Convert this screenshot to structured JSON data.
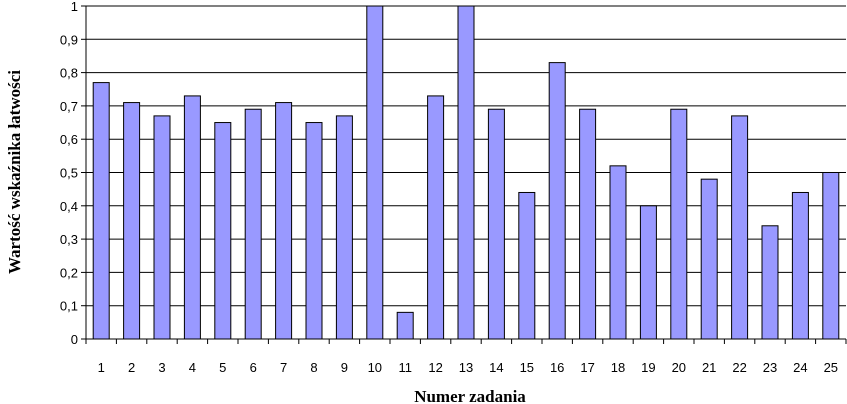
{
  "chart_data": {
    "type": "bar",
    "title": "",
    "xlabel": "Numer zadania",
    "ylabel": "Wartość wskaźnika łatwości",
    "ylim": [
      0,
      1
    ],
    "yticks": [
      "0",
      "0,1",
      "0,2",
      "0,3",
      "0,4",
      "0,5",
      "0,6",
      "0,7",
      "0,8",
      "0,9",
      "1"
    ],
    "categories": [
      "1",
      "2",
      "3",
      "4",
      "5",
      "6",
      "7",
      "8",
      "9",
      "10",
      "11",
      "12",
      "13",
      "14",
      "15",
      "16",
      "17",
      "18",
      "19",
      "20",
      "21",
      "22",
      "23",
      "24",
      "25"
    ],
    "values": [
      0.77,
      0.71,
      0.67,
      0.73,
      0.65,
      0.69,
      0.71,
      0.65,
      0.67,
      1.0,
      0.08,
      0.73,
      1.0,
      0.69,
      0.44,
      0.83,
      0.69,
      0.52,
      0.4,
      0.69,
      0.48,
      0.67,
      0.34,
      0.44,
      0.5
    ],
    "grid": true,
    "bar_color": "#9999ff"
  }
}
